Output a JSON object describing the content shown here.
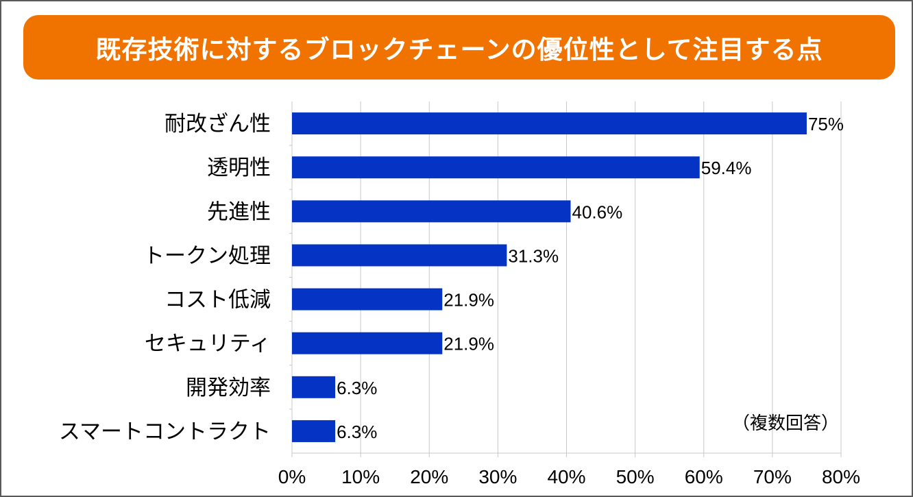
{
  "chart_data": {
    "type": "bar",
    "orientation": "horizontal",
    "title": "既存技術に対するブロックチェーンの優位性として注目する点",
    "categories": [
      "耐改ざん性",
      "透明性",
      "先進性",
      "トークン処理",
      "コスト低減",
      "セキュリティ",
      "開発効率",
      "スマートコントラクト"
    ],
    "values": [
      75,
      59.4,
      40.6,
      31.3,
      21.9,
      21.9,
      6.3,
      6.3
    ],
    "data_labels": [
      "75%",
      "59.4%",
      "40.6%",
      "31.3%",
      "21.9%",
      "21.9%",
      "6.3%",
      "6.3%"
    ],
    "xlim": [
      0,
      80
    ],
    "x_ticks": [
      "0%",
      "10%",
      "20%",
      "30%",
      "40%",
      "50%",
      "60%",
      "70%",
      "80%"
    ],
    "grid": true,
    "annotation": "（複数回答）",
    "colors": {
      "bar": "#0533C4",
      "title_bg": "#F07300",
      "grid": "#c8c8c8"
    }
  }
}
